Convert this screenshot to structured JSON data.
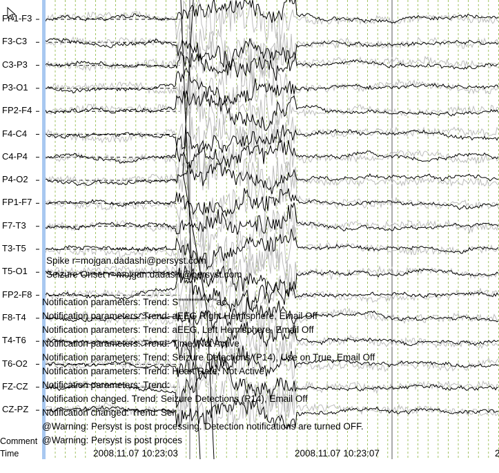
{
  "channels": [
    "FP1-F3",
    "F3-C3",
    "C3-P3",
    "P3-O1",
    "FP2-F4",
    "F4-C4",
    "C4-P4",
    "P4-O2",
    "FP1-F7",
    "F7-T3",
    "T3-T5",
    "T5-O1",
    "FP2-F8",
    "F8-T4",
    "T4-T6",
    "T6-O2",
    "FZ-CZ",
    "CZ-PZ"
  ],
  "annotations": [
    "Spike r=mojgan.dadashi@persyst.com",
    "Seizure Onset r=mojgan.dadashi@persyst.com",
    "Notification parameters: Trend: S\"\"\"\"\"\"\"\" \" \"ac",
    "Notification parameters: Trend: aEEG Right Hemisphere, Email Off",
    "Notification parameters: Trend: aEEG, Left Hemisphere, Email Off",
    "Notification parameters: Trend: Time, Not Active",
    "Notification parameters: Trend: Seizure Detections (P14), Use on True, Email Off",
    "Notification parameters: Trend: Heart Rate, Not Active",
    "Notification parameters: Trend:",
    "Notification changed. Trend: Seizure Detections (P14), Email Off",
    "Notification changed: Trend: Sei",
    "@Warning: Persyst is post processing. Detection notifications are turned OFF.",
    "@Warning: Persyst is post proces"
  ],
  "rows": {
    "comment": "Comment",
    "time": "Time"
  },
  "times": [
    "2008.11.07 10:23:03",
    "2008.11.07 10:23:07",
    "2"
  ],
  "colors": {
    "sidebar": "#a8c8f0",
    "dashed_line": "#000000",
    "grid": "#8ab43a",
    "trace": "#000000",
    "trace_gray": "#bdbdbd"
  },
  "icons": {
    "cursor": "mouse-pointer-icon"
  }
}
